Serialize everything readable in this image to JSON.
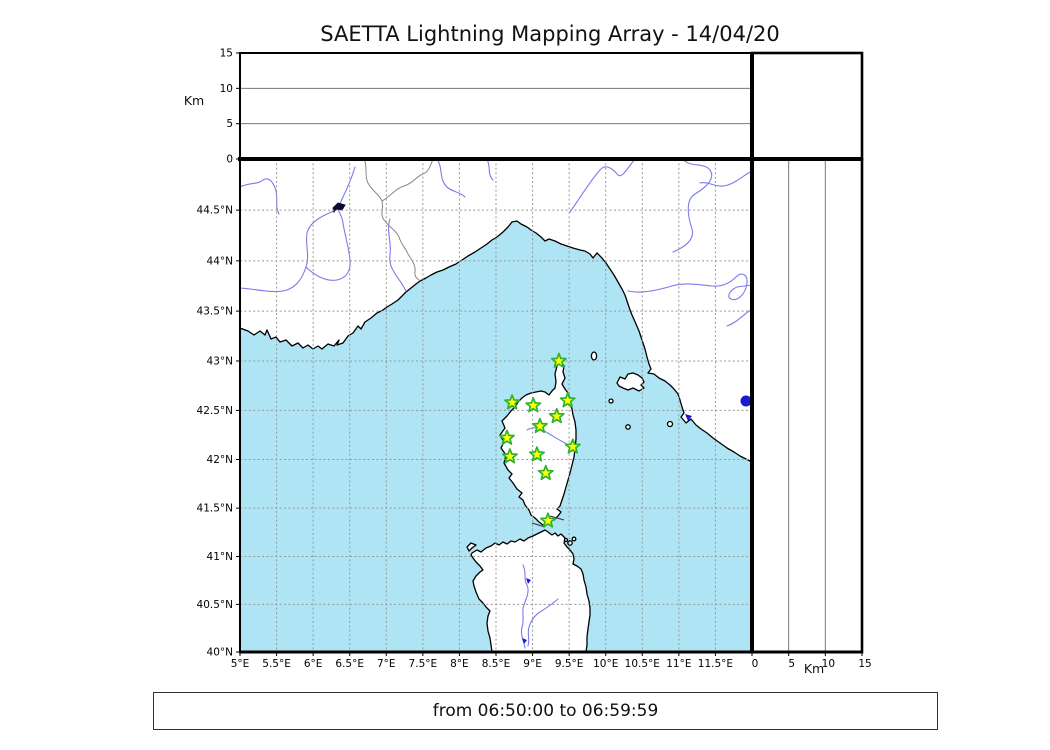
{
  "title": "SAETTA Lightning Mapping Array - 14/04/20",
  "caption": "from 06:50:00 to 06:59:59",
  "altitude_axis": {
    "unit_label_left": "Km",
    "unit_label_right": "Km",
    "km_tick_labels": [
      "0",
      "5",
      "10",
      "15"
    ],
    "km_tick_values": [
      0,
      5,
      10,
      15
    ],
    "km_gridlines": [
      5,
      10
    ],
    "km_max": 15
  },
  "map_axes": {
    "lon_min": 5,
    "lon_max": 12,
    "lat_min": 40,
    "lat_max": 45,
    "lon_ticks": [
      {
        "v": 5.0,
        "label": "5°E"
      },
      {
        "v": 5.5,
        "label": "5.5°E"
      },
      {
        "v": 6.0,
        "label": "6°E"
      },
      {
        "v": 6.5,
        "label": "6.5°E"
      },
      {
        "v": 7.0,
        "label": "7°E"
      },
      {
        "v": 7.5,
        "label": "7.5°E"
      },
      {
        "v": 8.0,
        "label": "8°E"
      },
      {
        "v": 8.5,
        "label": "8.5°E"
      },
      {
        "v": 9.0,
        "label": "9°E"
      },
      {
        "v": 9.5,
        "label": "9.5°E"
      },
      {
        "v": 10.0,
        "label": "10°E"
      },
      {
        "v": 10.5,
        "label": "10.5°E"
      },
      {
        "v": 11.0,
        "label": "11°E"
      },
      {
        "v": 11.5,
        "label": "11.5°E"
      }
    ],
    "lat_ticks": [
      {
        "v": 40.0,
        "label": "40°N"
      },
      {
        "v": 40.5,
        "label": "40.5°N"
      },
      {
        "v": 41.0,
        "label": "41°N"
      },
      {
        "v": 41.5,
        "label": "41.5°N"
      },
      {
        "v": 42.0,
        "label": "42°N"
      },
      {
        "v": 42.5,
        "label": "42.5°N"
      },
      {
        "v": 43.0,
        "label": "43°N"
      },
      {
        "v": 43.5,
        "label": "43.5°N"
      },
      {
        "v": 44.0,
        "label": "44°N"
      },
      {
        "v": 44.5,
        "label": "44.5°N"
      }
    ],
    "grid_lons": [
      5.5,
      6.0,
      6.5,
      7.0,
      7.5,
      8.0,
      8.5,
      9.0,
      9.5,
      10.0,
      10.5,
      11.0,
      11.5
    ],
    "grid_lats": [
      40.5,
      41.0,
      41.5,
      42.0,
      42.5,
      43.0,
      43.5,
      44.0,
      44.5
    ]
  },
  "stations": [
    {
      "lon": 9.36,
      "lat": 43.0
    },
    {
      "lon": 8.72,
      "lat": 42.58
    },
    {
      "lon": 9.01,
      "lat": 42.55
    },
    {
      "lon": 9.48,
      "lat": 42.6
    },
    {
      "lon": 9.33,
      "lat": 42.44
    },
    {
      "lon": 9.1,
      "lat": 42.34
    },
    {
      "lon": 8.65,
      "lat": 42.22
    },
    {
      "lon": 9.55,
      "lat": 42.13
    },
    {
      "lon": 8.69,
      "lat": 42.03
    },
    {
      "lon": 9.06,
      "lat": 42.05
    },
    {
      "lon": 9.18,
      "lat": 41.86
    },
    {
      "lon": 9.21,
      "lat": 41.37
    }
  ],
  "colors": {
    "sea": "#aee4f4",
    "land": "#ffffff",
    "coastline": "#000000",
    "river": "#7b7beb",
    "country_border": "#888888",
    "gridline": "#999999",
    "panel_gridline": "#777777",
    "star_fill": "#ffff00",
    "star_stroke": "#2db32d",
    "lake": "#1a1ad6",
    "dark_lake": "#0a0a30",
    "frame": "#000000"
  }
}
